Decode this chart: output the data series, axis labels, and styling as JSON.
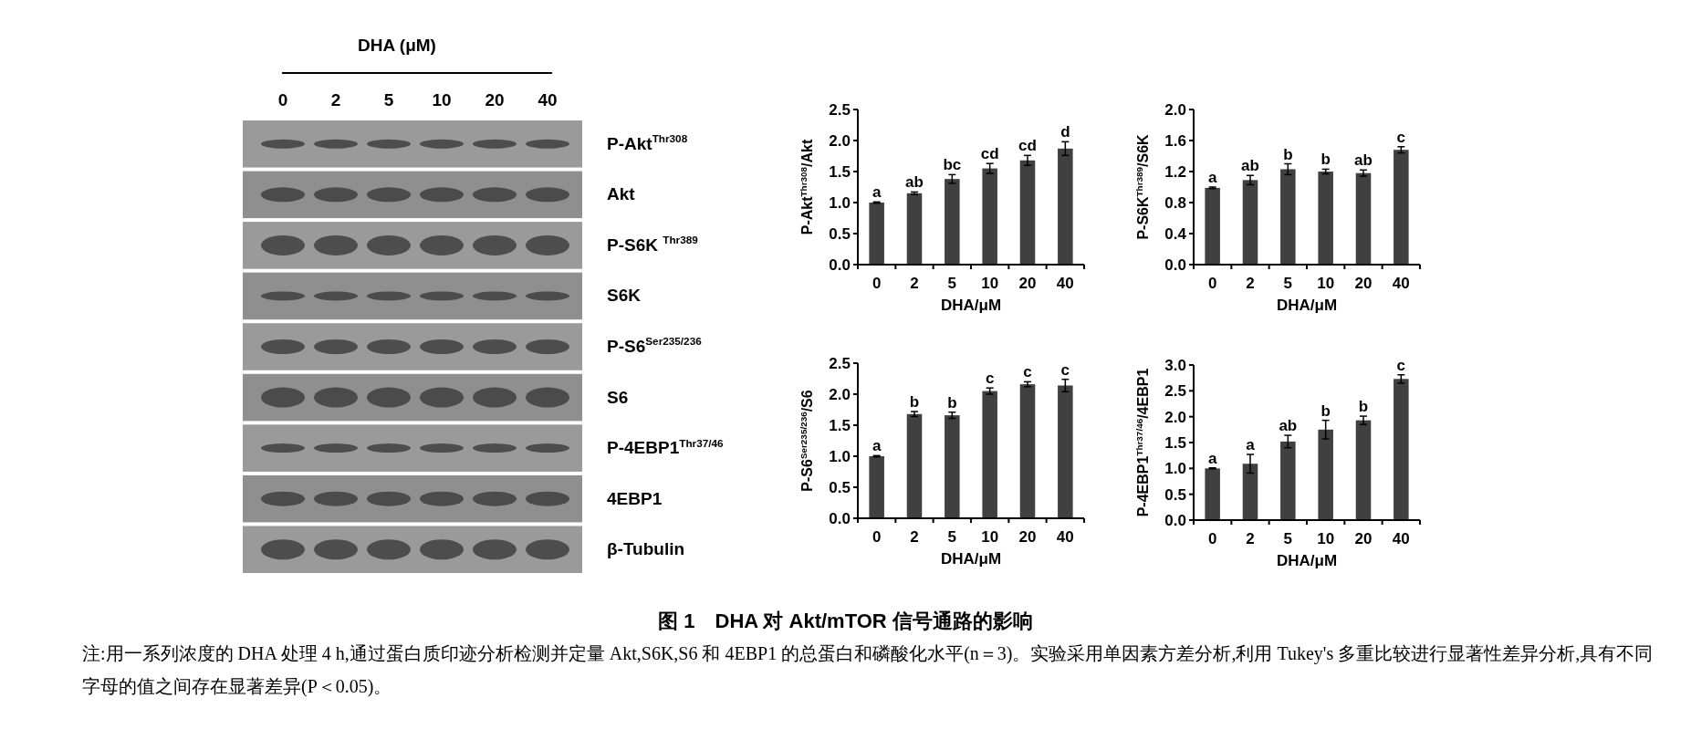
{
  "chart_data": [
    {
      "type": "other",
      "title": "DHA (μM)",
      "categories": [
        "0",
        "2",
        "5",
        "10",
        "20",
        "40"
      ],
      "annotations": [
        "P-Akt$^{Thr308}$",
        "Akt",
        "P-S6K $^{Thr389}$",
        "S6K",
        "P-S6$^{Ser235/236}$",
        "S6",
        "P-4EBP1$^{Thr37/46}$",
        "4EBP1",
        "β-Tubulin"
      ]
    },
    {
      "type": "bar",
      "xlabel": "DHA/μM",
      "ylabel": "P-Akt$^{Thr308}$/Akt",
      "categories": [
        "0",
        "2",
        "5",
        "10",
        "20",
        "40"
      ],
      "color": "#404040",
      "ylim": [
        0,
        2.5
      ],
      "yticks": [
        {
          "value": 0,
          "label": "0.0"
        },
        {
          "value": 0.5,
          "label": "0.5"
        },
        {
          "value": 1,
          "label": "1.0"
        },
        {
          "value": 1.5,
          "label": "1.5"
        },
        {
          "value": 2,
          "label": "2.0"
        },
        {
          "value": 2.5,
          "label": "2.5"
        }
      ],
      "grid": false,
      "values": [
        1.0,
        1.15,
        1.38,
        1.55,
        1.68,
        1.87
      ],
      "errors": [
        0.01,
        0.02,
        0.07,
        0.08,
        0.08,
        0.11
      ],
      "annotations": [
        {
          "text": "a",
          "x": "0",
          "y": 1.01
        },
        {
          "text": "ab",
          "x": "2",
          "y": 1.17
        },
        {
          "text": "bc",
          "x": "5",
          "y": 1.45
        },
        {
          "text": "cd",
          "x": "10",
          "y": 1.63
        },
        {
          "text": "cd",
          "x": "20",
          "y": 1.76
        },
        {
          "text": "d",
          "x": "40",
          "y": 1.98
        }
      ]
    },
    {
      "type": "bar",
      "xlabel": "DHA/μM",
      "ylabel": "P-S6K$^{Thr389}$/S6K",
      "categories": [
        "0",
        "2",
        "5",
        "10",
        "20",
        "40"
      ],
      "color": "#404040",
      "ylim": [
        0,
        2.0
      ],
      "yticks": [
        {
          "value": 0,
          "label": "0.0"
        },
        {
          "value": 0.4,
          "label": "0.4"
        },
        {
          "value": 0.8,
          "label": "0.8"
        },
        {
          "value": 1.2,
          "label": "1.2"
        },
        {
          "value": 1.6,
          "label": "1.6"
        },
        {
          "value": 2,
          "label": "2.0"
        }
      ],
      "grid": false,
      "values": [
        0.99,
        1.09,
        1.23,
        1.2,
        1.18,
        1.48
      ],
      "errors": [
        0.01,
        0.06,
        0.07,
        0.03,
        0.04,
        0.04
      ],
      "annotations": [
        {
          "text": "a",
          "x": "0",
          "y": 1.0
        },
        {
          "text": "ab",
          "x": "2",
          "y": 1.15
        },
        {
          "text": "b",
          "x": "5",
          "y": 1.3
        },
        {
          "text": "b",
          "x": "10",
          "y": 1.23
        },
        {
          "text": "ab",
          "x": "20",
          "y": 1.22
        },
        {
          "text": "c",
          "x": "40",
          "y": 1.52
        }
      ]
    },
    {
      "type": "bar",
      "xlabel": "DHA/μM",
      "ylabel": "P-S6$^{Ser235/236}$/S6",
      "categories": [
        "0",
        "2",
        "5",
        "10",
        "20",
        "40"
      ],
      "color": "#404040",
      "ylim": [
        0,
        2.5
      ],
      "yticks": [
        {
          "value": 0,
          "label": "0.0"
        },
        {
          "value": 0.5,
          "label": "0.5"
        },
        {
          "value": 1,
          "label": "1.0"
        },
        {
          "value": 1.5,
          "label": "1.5"
        },
        {
          "value": 2,
          "label": "2.0"
        },
        {
          "value": 2.5,
          "label": "2.5"
        }
      ],
      "grid": false,
      "values": [
        1.0,
        1.68,
        1.66,
        2.05,
        2.16,
        2.14
      ],
      "errors": [
        0.01,
        0.04,
        0.05,
        0.05,
        0.04,
        0.1
      ],
      "annotations": [
        {
          "text": "a",
          "x": "0",
          "y": 1.01
        },
        {
          "text": "b",
          "x": "2",
          "y": 1.72
        },
        {
          "text": "b",
          "x": "5",
          "y": 1.71
        },
        {
          "text": "c",
          "x": "10",
          "y": 2.1
        },
        {
          "text": "c",
          "x": "20",
          "y": 2.2
        },
        {
          "text": "c",
          "x": "40",
          "y": 2.24
        }
      ]
    },
    {
      "type": "bar",
      "xlabel": "DHA/μM",
      "ylabel": "P-4EBP1$^{Thr37/46}$/4EBP1",
      "categories": [
        "0",
        "2",
        "5",
        "10",
        "20",
        "40"
      ],
      "color": "#404040",
      "ylim": [
        0,
        3.0
      ],
      "yticks": [
        {
          "value": 0,
          "label": "0.0"
        },
        {
          "value": 0.5,
          "label": "0.5"
        },
        {
          "value": 1,
          "label": "1.0"
        },
        {
          "value": 1.5,
          "label": "1.5"
        },
        {
          "value": 2,
          "label": "2.0"
        },
        {
          "value": 2.5,
          "label": "2.5"
        },
        {
          "value": 3,
          "label": "3.0"
        }
      ],
      "grid": false,
      "values": [
        1.0,
        1.09,
        1.52,
        1.75,
        1.93,
        2.73
      ],
      "errors": [
        0.01,
        0.18,
        0.12,
        0.18,
        0.08,
        0.08
      ],
      "annotations": [
        {
          "text": "a",
          "x": "0",
          "y": 1.01
        },
        {
          "text": "a",
          "x": "2",
          "y": 1.27
        },
        {
          "text": "ab",
          "x": "5",
          "y": 1.64
        },
        {
          "text": "b",
          "x": "10",
          "y": 1.93
        },
        {
          "text": "b",
          "x": "20",
          "y": 2.01
        },
        {
          "text": "c",
          "x": "40",
          "y": 2.81
        }
      ]
    },
    {
      "type": "other",
      "title": "图 1　DHA 对 Akt/mTOR 信号通路的影响",
      "annotations": [
        "注:用一系列浓度的 DHA 处理 4 h,通过蛋白质印迹分析检测并定量 Akt,S6K,S6 和 4EBP1 的总蛋白和磷酸化水平(n＝3)。实验采用单因素方差分析,利用 Tukey's 多重比较进行显著性差异分析,具有不同字母的值之间存在显著差异(P＜0.05)。"
      ]
    }
  ]
}
